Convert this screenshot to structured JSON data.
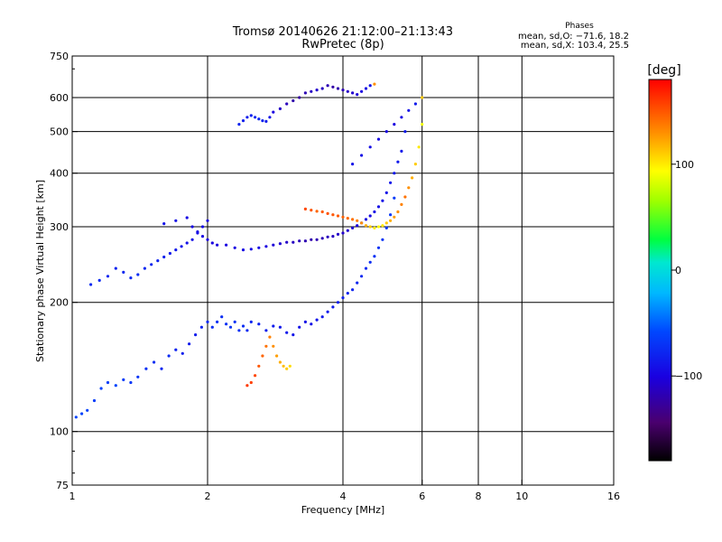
{
  "chart_data": {
    "type": "scatter",
    "title_line1": "Tromsø 20140626 21:12:00–21:13:43",
    "title_line2": "RwPretec (8p)",
    "xlabel": "Frequency [MHz]",
    "ylabel": "Stationary phase Virtual Height [km]",
    "x_scale": "log",
    "y_scale": "log",
    "xlim": [
      1,
      16
    ],
    "ylim": [
      75,
      750
    ],
    "x_ticks": [
      {
        "value": 1,
        "label": "1"
      },
      {
        "value": 2,
        "label": "2"
      },
      {
        "value": 4,
        "label": "4"
      },
      {
        "value": 6,
        "label": "6"
      },
      {
        "value": 8,
        "label": "8"
      },
      {
        "value": 10,
        "label": "10"
      },
      {
        "value": 16,
        "label": "16"
      }
    ],
    "x_gridlines": [
      2,
      4,
      6,
      8,
      10
    ],
    "y_ticks": [
      {
        "value": 75,
        "label": "75"
      },
      {
        "value": 100,
        "label": "100"
      },
      {
        "value": 200,
        "label": "200"
      },
      {
        "value": 300,
        "label": "300"
      },
      {
        "value": 400,
        "label": "400"
      },
      {
        "value": 500,
        "label": "500"
      },
      {
        "value": 600,
        "label": "600"
      },
      {
        "value": 750,
        "label": "750"
      }
    ],
    "y_gridlines": [
      100,
      200,
      300,
      400,
      500,
      600
    ],
    "grid": true,
    "stats": {
      "heading": "Phases",
      "line_O": "mean, sd,O: −71.6, 18.2",
      "line_X": "mean, sd,X: 103.4, 25.5"
    },
    "colorbar": {
      "unit_label": "[deg]",
      "range": [
        -180,
        180
      ],
      "ticks": [
        {
          "value": 100,
          "label": "100"
        },
        {
          "value": 0,
          "label": "0"
        },
        {
          "value": -100,
          "label": "−100"
        }
      ]
    },
    "series": [
      {
        "freq": [
          1.02,
          1.05,
          1.08,
          1.12,
          1.16,
          1.2,
          1.25,
          1.3,
          1.35,
          1.4,
          1.46,
          1.52,
          1.58,
          1.64,
          1.7,
          1.76,
          1.82,
          1.88,
          1.94,
          2.0,
          2.05,
          2.1,
          2.15,
          2.2,
          2.25,
          2.3,
          2.35,
          2.4,
          2.45,
          2.5,
          2.6,
          2.7,
          2.8,
          2.9,
          3.0,
          3.1,
          3.2,
          3.3,
          3.4,
          3.5,
          3.6,
          3.7,
          3.8,
          3.9,
          4.0,
          4.1,
          4.2,
          4.3,
          4.4,
          4.5,
          4.6,
          4.7,
          4.8,
          4.9,
          5.0,
          5.1,
          5.2
        ],
        "height": [
          108,
          110,
          112,
          118,
          126,
          130,
          128,
          132,
          130,
          134,
          140,
          145,
          140,
          150,
          155,
          152,
          160,
          168,
          175,
          180,
          175,
          180,
          185,
          178,
          175,
          180,
          172,
          176,
          172,
          180,
          178,
          172,
          176,
          175,
          170,
          168,
          175,
          180,
          178,
          182,
          185,
          190,
          195,
          200,
          205,
          210,
          214,
          222,
          230,
          240,
          248,
          256,
          268,
          280,
          298,
          320,
          350
        ],
        "phase": [
          -60,
          -60,
          -62,
          -65,
          -62,
          -64,
          -60,
          -66,
          -68,
          -70,
          -72,
          -74,
          -78,
          -75,
          -80,
          -82,
          -85,
          -84,
          -80,
          -76,
          -74,
          -72,
          -74,
          -72,
          -70,
          -70,
          -72,
          -74,
          -76,
          -78,
          -80,
          -82,
          -84,
          -86,
          -86,
          -88,
          -90,
          -92,
          -90,
          -88,
          -86,
          -85,
          -84,
          -82,
          -82,
          -80,
          -80,
          -78,
          -76,
          -75,
          -74,
          -72,
          -72,
          -70,
          -68,
          -68,
          -66
        ]
      },
      {
        "freq": [
          1.6,
          1.7,
          1.8,
          1.85,
          1.9,
          1.95,
          2.0,
          2.05,
          2.1,
          2.2,
          2.3,
          2.4,
          2.5,
          2.6,
          2.7,
          2.8,
          2.9,
          3.0,
          3.1,
          3.2,
          3.3,
          3.4,
          3.5,
          3.6,
          3.7,
          3.8,
          3.9,
          4.0,
          4.1,
          4.2,
          4.3,
          4.4,
          4.5,
          4.6,
          4.7,
          4.8,
          4.9,
          5.0,
          5.1,
          5.2,
          5.3,
          5.4,
          5.5
        ],
        "height": [
          305,
          310,
          315,
          300,
          292,
          285,
          280,
          275,
          272,
          272,
          268,
          265,
          266,
          268,
          270,
          272,
          274,
          276,
          276,
          278,
          278,
          280,
          280,
          282,
          284,
          285,
          288,
          290,
          294,
          298,
          302,
          306,
          312,
          318,
          325,
          334,
          345,
          360,
          380,
          400,
          425,
          450,
          500
        ],
        "phase": [
          -90,
          -92,
          -95,
          -96,
          -96,
          -98,
          -100,
          -100,
          -102,
          -100,
          -98,
          -96,
          -94,
          -96,
          -100,
          -104,
          -106,
          -110,
          -112,
          -115,
          -118,
          -120,
          -118,
          -116,
          -114,
          -112,
          -110,
          -108,
          -106,
          -104,
          -102,
          -100,
          -98,
          -96,
          -94,
          -92,
          -90,
          -90,
          -88,
          -86,
          -86,
          -86,
          -85
        ]
      },
      {
        "freq": [
          3.3,
          3.4,
          3.5,
          3.6,
          3.7,
          3.8,
          3.9,
          4.0,
          4.1,
          4.2,
          4.3,
          4.4,
          4.5,
          4.6,
          4.7,
          4.8,
          4.9,
          5.0,
          5.1,
          5.2,
          5.3,
          5.4,
          5.5,
          5.6,
          5.7,
          5.8,
          5.9,
          6.0
        ],
        "height": [
          330,
          328,
          326,
          325,
          322,
          320,
          318,
          316,
          314,
          312,
          310,
          306,
          302,
          300,
          298,
          300,
          302,
          306,
          310,
          316,
          325,
          338,
          352,
          370,
          390,
          420,
          460,
          520
        ],
        "phase": [
          155,
          150,
          145,
          148,
          152,
          150,
          148,
          146,
          144,
          140,
          136,
          130,
          120,
          110,
          100,
          95,
          100,
          110,
          120,
          125,
          130,
          135,
          140,
          130,
          120,
          110,
          100,
          90
        ]
      },
      {
        "freq": [
          2.35,
          2.4,
          2.45,
          2.5,
          2.55,
          2.6,
          2.65,
          2.7,
          2.75,
          2.8,
          2.9,
          3.0,
          3.1,
          3.2,
          3.3,
          3.4,
          3.5,
          3.6,
          3.7,
          3.8,
          3.9,
          4.0,
          4.1,
          4.2,
          4.3,
          4.4,
          4.5,
          4.6,
          4.7
        ],
        "height": [
          520,
          530,
          540,
          545,
          540,
          535,
          530,
          528,
          540,
          555,
          565,
          580,
          590,
          600,
          615,
          620,
          625,
          630,
          640,
          635,
          630,
          625,
          620,
          615,
          610,
          620,
          630,
          640,
          645
        ],
        "phase": [
          -80,
          -82,
          -84,
          -80,
          -78,
          -76,
          -80,
          -84,
          -90,
          -100,
          -110,
          -115,
          -120,
          -125,
          -118,
          -112,
          -108,
          -112,
          -118,
          -122,
          -120,
          -116,
          -110,
          -108,
          -104,
          -100,
          -96,
          -90,
          130
        ]
      },
      {
        "freq": [
          1.1,
          1.15,
          1.2,
          1.25,
          1.3,
          1.35,
          1.4,
          1.45,
          1.5,
          1.55,
          1.6,
          1.65,
          1.7,
          1.75,
          1.8,
          1.85,
          1.9,
          1.95,
          2.0
        ],
        "height": [
          220,
          225,
          230,
          240,
          235,
          228,
          232,
          240,
          245,
          250,
          255,
          260,
          265,
          270,
          275,
          280,
          290,
          300,
          310
        ],
        "phase": [
          -75,
          -76,
          -78,
          -80,
          -78,
          -76,
          -74,
          -76,
          -78,
          -80,
          -82,
          -84,
          -86,
          -88,
          -90,
          -92,
          -94,
          -96,
          -98
        ]
      },
      {
        "freq": [
          2.45,
          2.5,
          2.55,
          2.6,
          2.65,
          2.7,
          2.75,
          2.8,
          2.85,
          2.9,
          2.95,
          3.0,
          3.05
        ],
        "height": [
          128,
          130,
          135,
          142,
          150,
          158,
          166,
          158,
          150,
          145,
          142,
          140,
          142
        ],
        "phase": [
          160,
          158,
          155,
          150,
          145,
          140,
          135,
          130,
          125,
          120,
          115,
          110,
          105
        ]
      },
      {
        "freq": [
          4.2,
          4.4,
          4.6,
          4.8,
          5.0,
          5.2,
          5.4,
          5.6,
          5.8,
          6.0
        ],
        "height": [
          420,
          440,
          460,
          480,
          500,
          520,
          540,
          560,
          580,
          600
        ],
        "phase": [
          -90,
          -92,
          -94,
          -96,
          -98,
          -100,
          -95,
          -90,
          -85,
          110
        ]
      }
    ]
  }
}
